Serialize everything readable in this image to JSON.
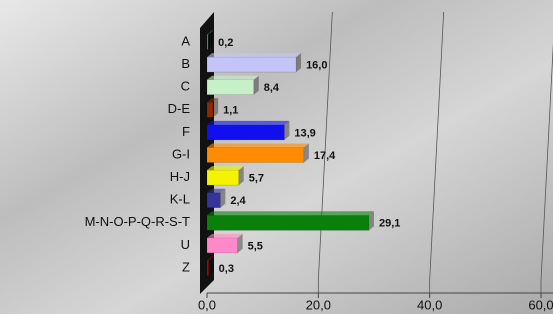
{
  "chart_data": {
    "type": "bar",
    "orientation": "horizontal",
    "categories": [
      "A",
      "B",
      "C",
      "D-E",
      "F",
      "G-I",
      "H-J",
      "K-L",
      "M-N-O-P-Q-R-S-T",
      "U",
      "Z"
    ],
    "values": [
      0.2,
      16.0,
      8.4,
      1.1,
      13.9,
      17.4,
      5.7,
      2.4,
      29.1,
      5.5,
      0.3
    ],
    "value_labels": [
      "0,2",
      "16,0",
      "8,4",
      "1,1",
      "13,9",
      "17,4",
      "5,7",
      "2,4",
      "29,1",
      "5,5",
      "0,3"
    ],
    "colors": [
      "#3fa07f",
      "#c4c4f8",
      "#c8f0c8",
      "#8b2a00",
      "#1010ee",
      "#ff8c00",
      "#f4f400",
      "#34349a",
      "#0a800a",
      "#ff88c8",
      "#c00000"
    ],
    "xlim": [
      0,
      60
    ],
    "xticks": [
      {
        "value": 0,
        "label": "0,0"
      },
      {
        "value": 20,
        "label": "20,0"
      },
      {
        "value": 40,
        "label": "40,0"
      },
      {
        "value": 60,
        "label": "60,0"
      }
    ],
    "grid": true
  }
}
